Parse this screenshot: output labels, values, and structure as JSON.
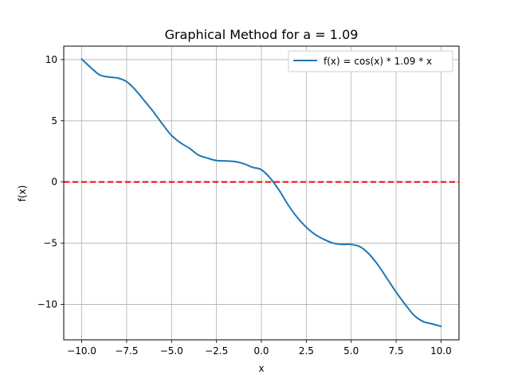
{
  "chart_data": {
    "type": "line",
    "title": "Graphical Method for a = 1.09",
    "xlabel": "x",
    "ylabel": "f(x)",
    "xlim": [
      -11,
      11
    ],
    "ylim": [
      -12.9,
      11.1
    ],
    "xticks": [
      -10.0,
      -7.5,
      -5.0,
      -2.5,
      0.0,
      2.5,
      5.0,
      7.5,
      10.0
    ],
    "xtick_labels": [
      "−10.0",
      "−7.5",
      "−5.0",
      "−2.5",
      "0.0",
      "2.5",
      "5.0",
      "7.5",
      "10.0"
    ],
    "yticks": [
      -10,
      -5,
      0,
      5,
      10
    ],
    "ytick_labels": [
      "−10",
      "−5",
      "0",
      "5",
      "10"
    ],
    "grid": true,
    "legend_position": "top-right",
    "series": [
      {
        "name": "f(x) = cos(x) * 1.09 * x",
        "color": "#1f77b4",
        "x": [
          -10.0,
          -9.5,
          -9.0,
          -8.5,
          -8.0,
          -7.5,
          -7.0,
          -6.5,
          -6.0,
          -5.5,
          -5.0,
          -4.5,
          -4.0,
          -3.5,
          -3.0,
          -2.5,
          -2.0,
          -1.5,
          -1.0,
          -0.5,
          0.0,
          0.5,
          1.0,
          1.5,
          2.0,
          2.5,
          3.0,
          3.5,
          4.0,
          4.5,
          5.0,
          5.5,
          6.0,
          6.5,
          7.0,
          7.5,
          8.0,
          8.5,
          9.0,
          9.5,
          10.0
        ],
        "y": [
          10.05,
          9.35,
          8.75,
          8.58,
          8.5,
          8.2,
          7.5,
          6.62,
          5.72,
          4.72,
          3.8,
          3.2,
          2.75,
          2.2,
          1.95,
          1.75,
          1.72,
          1.68,
          1.5,
          1.2,
          1.0,
          0.3,
          -0.7,
          -1.9,
          -2.9,
          -3.7,
          -4.3,
          -4.7,
          -5.0,
          -5.1,
          -5.1,
          -5.3,
          -5.9,
          -6.8,
          -7.9,
          -9.0,
          -10.0,
          -10.9,
          -11.4,
          -11.6,
          -11.8
        ]
      }
    ],
    "reference_line": {
      "y": 0,
      "color": "#ff0000",
      "style": "dashed"
    }
  }
}
